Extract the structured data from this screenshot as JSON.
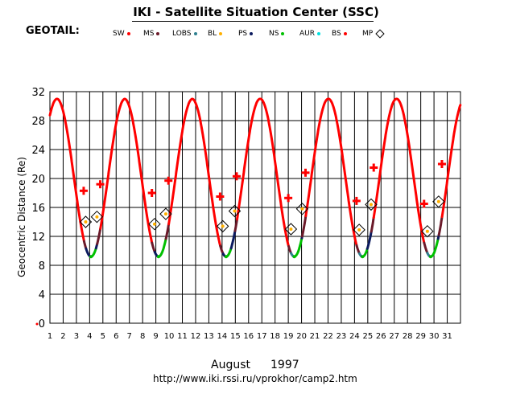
{
  "header": {
    "title": "IKI - Satellite Situation Center (SSC)",
    "satellite": "GEOTAIL:"
  },
  "legend": [
    {
      "label": "SW",
      "color": "#ff0000",
      "marker": "dot"
    },
    {
      "label": "MS",
      "color": "#6b1a2a",
      "marker": "dot"
    },
    {
      "label": "LOBS",
      "color": "#2f7f8f",
      "marker": "dot"
    },
    {
      "label": "BL",
      "color": "#ffb000",
      "marker": "dot"
    },
    {
      "label": "PS",
      "color": "#0b1a5e",
      "marker": "dot"
    },
    {
      "label": "NS",
      "color": "#00c000",
      "marker": "dot"
    },
    {
      "label": "AUR",
      "color": "#00e0e0",
      "marker": "dot"
    },
    {
      "label": "BS",
      "color": "#ff0000",
      "marker": "dot"
    },
    {
      "label": "MP",
      "color": "#000000",
      "marker": "diamond"
    }
  ],
  "footer": {
    "month": "August",
    "year": "1997",
    "url": "http://www.iki.rssi.ru/vprokhor/camp2.htm"
  },
  "chart_data": {
    "type": "line",
    "title": "IKI - Satellite Situation Center (SSC)",
    "xlabel": "",
    "ylabel": "Geocentric Distance (Re)",
    "xlim": [
      1,
      32
    ],
    "ylim": [
      0,
      32
    ],
    "x_ticks": [
      1,
      2,
      3,
      4,
      5,
      6,
      7,
      8,
      9,
      10,
      11,
      12,
      13,
      14,
      15,
      16,
      17,
      18,
      19,
      20,
      21,
      22,
      23,
      24,
      25,
      26,
      27,
      28,
      29,
      30,
      31
    ],
    "y_ticks": [
      0,
      4,
      8,
      12,
      16,
      20,
      24,
      28,
      32
    ],
    "grid": true,
    "orbit_period_days": 5.13,
    "perigee_days": [
      4.1,
      9.2,
      14.3,
      19.45,
      24.6,
      29.75
    ],
    "apogee_re": 31.0,
    "perigee_re": 9.2,
    "bow_shock_crossings": [
      {
        "day": 3.55,
        "re": 18.3
      },
      {
        "day": 4.8,
        "re": 19.2
      },
      {
        "day": 8.7,
        "re": 18.0
      },
      {
        "day": 9.95,
        "re": 19.7
      },
      {
        "day": 13.85,
        "re": 17.5
      },
      {
        "day": 15.1,
        "re": 20.3
      },
      {
        "day": 19.0,
        "re": 17.3
      },
      {
        "day": 20.3,
        "re": 20.8
      },
      {
        "day": 24.15,
        "re": 16.9
      },
      {
        "day": 25.45,
        "re": 21.5
      },
      {
        "day": 29.25,
        "re": 16.5
      },
      {
        "day": 30.6,
        "re": 22.0
      }
    ],
    "magnetopause_crossings": [
      {
        "day": 3.7,
        "re": 14.0
      },
      {
        "day": 4.55,
        "re": 14.7
      },
      {
        "day": 8.9,
        "re": 13.7
      },
      {
        "day": 9.75,
        "re": 15.1
      },
      {
        "day": 14.05,
        "re": 13.4
      },
      {
        "day": 14.95,
        "re": 15.5
      },
      {
        "day": 19.2,
        "re": 13.0
      },
      {
        "day": 20.05,
        "re": 15.8
      },
      {
        "day": 24.35,
        "re": 12.9
      },
      {
        "day": 25.25,
        "re": 16.4
      },
      {
        "day": 29.5,
        "re": 12.7
      },
      {
        "day": 30.35,
        "re": 16.8
      }
    ]
  }
}
